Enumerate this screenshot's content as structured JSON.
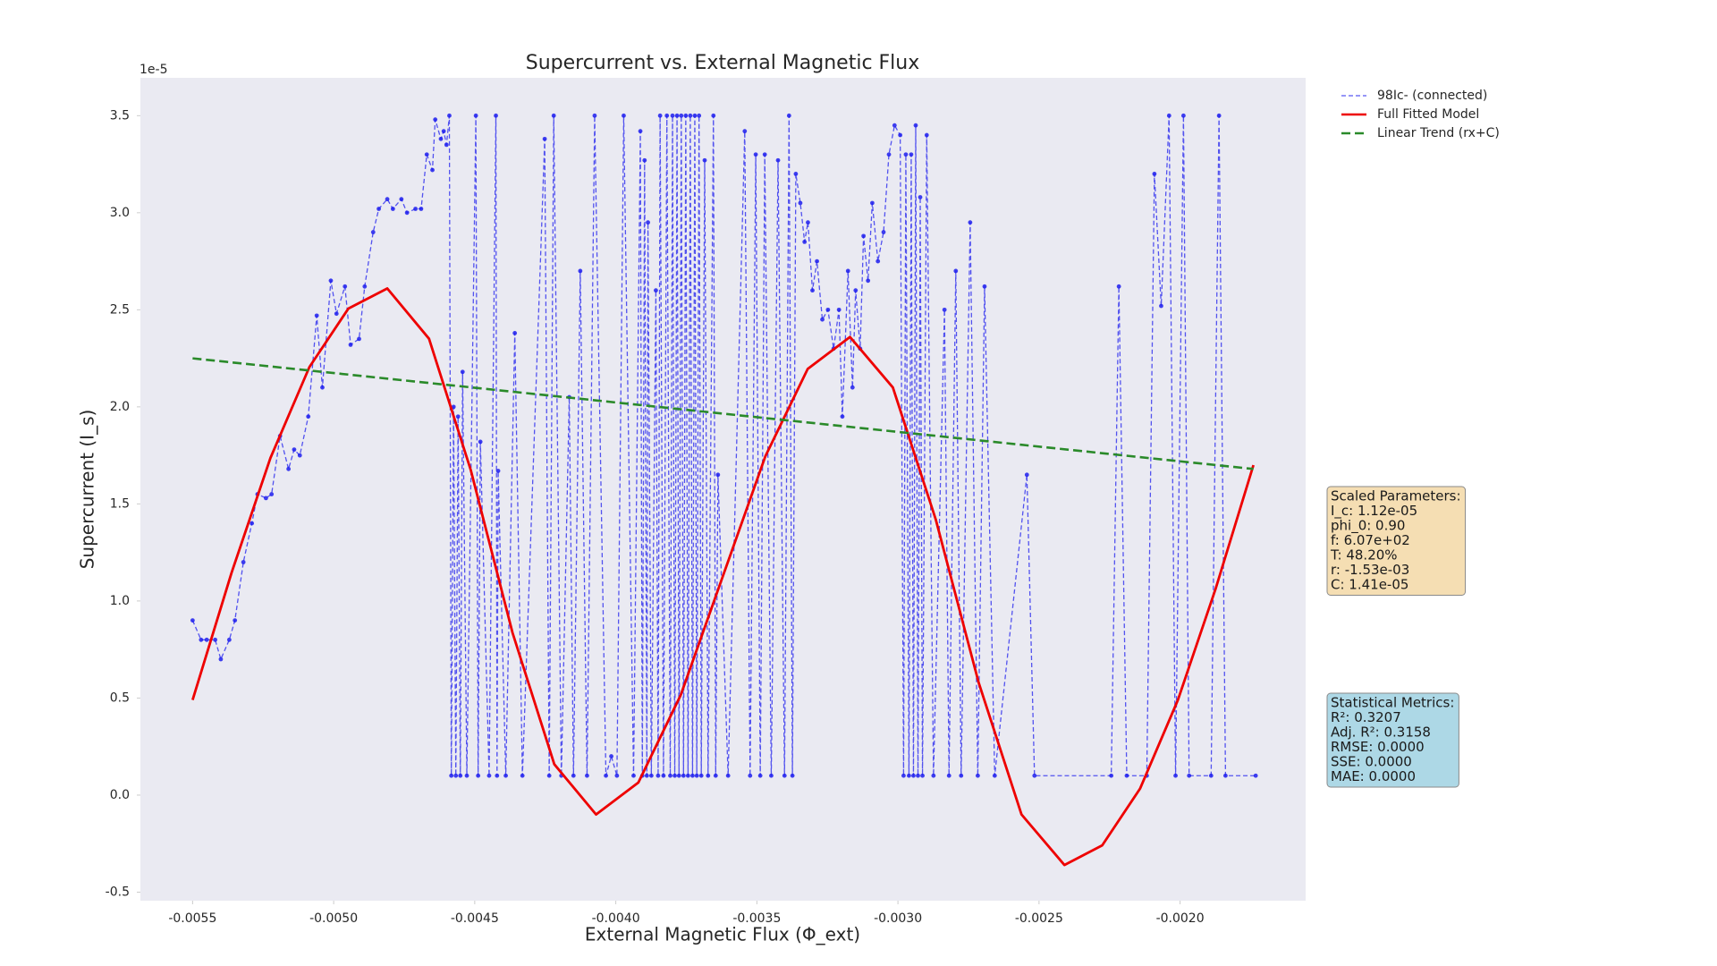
{
  "chart_data": {
    "type": "line",
    "title": "Supercurrent vs. External Magnetic Flux",
    "x_label": "External Magnetic Flux (Φ_ext)",
    "y_label": "Supercurrent (I_s)",
    "y_offset_label": "1e-5",
    "background": "#eaeaf2",
    "grid": false,
    "legend": "outside-right",
    "xlim": [
      -0.005685,
      -0.001555
    ],
    "ylim": [
      -0.544,
      3.695
    ],
    "xticks": [
      -0.0055,
      {
        "value": -0.005,
        "label": "-0.0050"
      },
      -0.0045,
      {
        "value": -0.004,
        "label": "-0.0040"
      },
      -0.0035,
      {
        "value": -0.003,
        "label": "-0.0030"
      },
      -0.0025,
      {
        "value": -0.002,
        "label": "-0.0020"
      }
    ],
    "yticks": [
      -0.5,
      {
        "value": 0,
        "label": "0.0"
      },
      0.5,
      {
        "value": 1,
        "label": "1.0"
      },
      1.5,
      {
        "value": 2,
        "label": "2.0"
      },
      2.5,
      {
        "value": 3,
        "label": "3.0"
      },
      3.5
    ],
    "series": [
      {
        "name": "98Ic- (connected)",
        "color": "#1f1fee",
        "style": "dashed",
        "marker": true,
        "x": [
          -0.0055,
          -0.00547,
          -0.00545,
          -0.00542,
          -0.0054,
          -0.00537,
          -0.00535,
          -0.00532,
          -0.00529,
          -0.00527,
          -0.00524,
          -0.00522,
          -0.00519,
          -0.00516,
          -0.00514,
          -0.00512,
          -0.00509,
          -0.00506,
          -0.00504,
          -0.00501,
          -0.00499,
          -0.00496,
          -0.00494,
          -0.00491,
          -0.00489,
          -0.00486,
          -0.00484,
          -0.00481,
          -0.00479,
          -0.00476,
          -0.00474,
          -0.00471,
          -0.00469,
          -0.00467,
          -0.00465,
          -0.00464,
          -0.00462,
          -0.00461,
          -0.0046,
          -0.00459,
          -0.004583,
          -0.004575,
          -0.004567,
          -0.004559,
          -0.004551,
          -0.004543,
          -0.004528,
          -0.004496,
          -0.004488,
          -0.00448,
          -0.004449,
          -0.004425,
          -0.004421,
          -0.004417,
          -0.00439,
          -0.004358,
          -0.004331,
          -0.004252,
          -0.004236,
          -0.00422,
          -0.004193,
          -0.004165,
          -0.00415,
          -0.004126,
          -0.004102,
          -0.004075,
          -0.004035,
          -0.004016,
          -0.003996,
          -0.003972,
          -0.003937,
          -0.003913,
          -0.003906,
          -0.003898,
          -0.00389,
          -0.003886,
          -0.003874,
          -0.003858,
          -0.00385,
          -0.003843,
          -0.003831,
          -0.003819,
          -0.003807,
          -0.003799,
          -0.003791,
          -0.003783,
          -0.003776,
          -0.003768,
          -0.00376,
          -0.003752,
          -0.003744,
          -0.003736,
          -0.003728,
          -0.00372,
          -0.003713,
          -0.003705,
          -0.003697,
          -0.003685,
          -0.003673,
          -0.003654,
          -0.003646,
          -0.003638,
          -0.003602,
          -0.003543,
          -0.003524,
          -0.003504,
          -0.003488,
          -0.003472,
          -0.003449,
          -0.003425,
          -0.003402,
          -0.003386,
          -0.003374,
          -0.003362,
          -0.003346,
          -0.003331,
          -0.003319,
          -0.003303,
          -0.003287,
          -0.003268,
          -0.003248,
          -0.003228,
          -0.003209,
          -0.003197,
          -0.003177,
          -0.003161,
          -0.00315,
          -0.003134,
          -0.003122,
          -0.003106,
          -0.003091,
          -0.003071,
          -0.003051,
          -0.003032,
          -0.003012,
          -0.002992,
          -0.00298,
          -0.002972,
          -0.002961,
          -0.002953,
          -0.002945,
          -0.002937,
          -0.002929,
          -0.002921,
          -0.002913,
          -0.002898,
          -0.002874,
          -0.002835,
          -0.002819,
          -0.002795,
          -0.002776,
          -0.002744,
          -0.002717,
          -0.002693,
          -0.002657,
          -0.002543,
          -0.002516,
          -0.002244,
          -0.002217,
          -0.002189,
          -0.002118,
          -0.002091,
          -0.002067,
          -0.002039,
          -0.002016,
          -0.001988,
          -0.001968,
          -0.00189,
          -0.001862,
          -0.001839,
          -0.001732
        ],
        "values": [
          0.9,
          0.8,
          0.8,
          0.8,
          0.7,
          0.8,
          0.9,
          1.2,
          1.4,
          1.55,
          1.53,
          1.55,
          1.85,
          1.68,
          1.78,
          1.75,
          1.95,
          2.47,
          2.1,
          2.65,
          2.48,
          2.62,
          2.32,
          2.35,
          2.62,
          2.9,
          3.02,
          3.07,
          3.02,
          3.07,
          3.0,
          3.02,
          3.02,
          3.3,
          3.22,
          3.48,
          3.38,
          3.42,
          3.35,
          3.5,
          0.1,
          2.0,
          0.1,
          1.95,
          0.1,
          2.18,
          0.1,
          3.5,
          0.1,
          1.82,
          0.1,
          3.5,
          0.1,
          1.67,
          0.1,
          2.38,
          0.1,
          3.38,
          0.1,
          3.5,
          0.1,
          2.05,
          0.1,
          2.7,
          0.1,
          3.5,
          0.1,
          0.2,
          0.1,
          3.5,
          0.1,
          3.42,
          0.1,
          3.27,
          0.1,
          2.95,
          0.1,
          2.6,
          0.1,
          3.5,
          0.1,
          3.5,
          0.1,
          3.5,
          0.1,
          3.5,
          0.1,
          3.5,
          0.1,
          3.5,
          0.1,
          3.5,
          0.1,
          3.5,
          0.1,
          3.5,
          0.1,
          3.27,
          0.1,
          3.5,
          0.1,
          1.65,
          0.1,
          3.42,
          0.1,
          3.3,
          0.1,
          3.3,
          0.1,
          3.27,
          0.1,
          3.5,
          0.1,
          3.2,
          3.05,
          2.85,
          2.95,
          2.6,
          2.75,
          2.45,
          2.5,
          2.3,
          2.5,
          1.95,
          2.7,
          2.1,
          2.6,
          2.3,
          2.88,
          2.65,
          3.05,
          2.75,
          2.9,
          3.3,
          3.45,
          3.4,
          0.1,
          3.3,
          0.1,
          3.3,
          0.1,
          3.45,
          0.1,
          3.08,
          0.1,
          3.4,
          0.1,
          2.5,
          0.1,
          2.7,
          0.1,
          2.95,
          0.1,
          2.62,
          0.1,
          1.65,
          0.1,
          0.1,
          2.62,
          0.1,
          0.1,
          3.2,
          2.52,
          3.5,
          0.1,
          3.5,
          0.1,
          0.1,
          3.5,
          0.1,
          0.1
        ]
      },
      {
        "name": "Full Fitted Model",
        "color": "#ee0000",
        "style": "solid",
        "marker": false,
        "x": [
          -0.0055,
          -0.005362,
          -0.005224,
          -0.005086,
          -0.004948,
          -0.00481,
          -0.004662,
          -0.004514,
          -0.004366,
          -0.004218,
          -0.00407,
          -0.00392,
          -0.00377,
          -0.00362,
          -0.00347,
          -0.00332,
          -0.00317,
          -0.003018,
          -0.002866,
          -0.002714,
          -0.002562,
          -0.00241,
          -0.002276,
          -0.002142,
          -0.002008,
          -0.001874,
          -0.00174
        ],
        "values": [
          0.49,
          1.145,
          1.737,
          2.205,
          2.506,
          2.61,
          2.351,
          1.674,
          0.836,
          0.159,
          -0.1,
          0.065,
          0.515,
          1.13,
          1.745,
          2.195,
          2.36,
          2.1,
          1.42,
          0.58,
          -0.1,
          -0.36,
          -0.259,
          0.033,
          0.489,
          1.063,
          1.7
        ]
      },
      {
        "name": "Linear Trend (rx+C)",
        "color": "#2a8a2a",
        "style": "longdash",
        "marker": false,
        "x": [
          -0.0055,
          -0.00174
        ],
        "values": [
          2.25,
          1.68
        ]
      }
    ],
    "annotations": [
      {
        "color": "#f5deb3",
        "lines": [
          "Scaled Parameters:",
          "I_c: 1.12e-05",
          "phi_0: 0.90",
          "f: 6.07e+02",
          "T: 48.20%",
          "r: -1.53e-03",
          "C: 1.41e-05"
        ]
      },
      {
        "color": "#add8e6",
        "lines": [
          "Statistical Metrics:",
          "R²: 0.3207",
          "Adj. R²: 0.3158",
          "RMSE: 0.0000",
          "SSE: 0.0000",
          "MAE: 0.0000"
        ]
      }
    ]
  }
}
